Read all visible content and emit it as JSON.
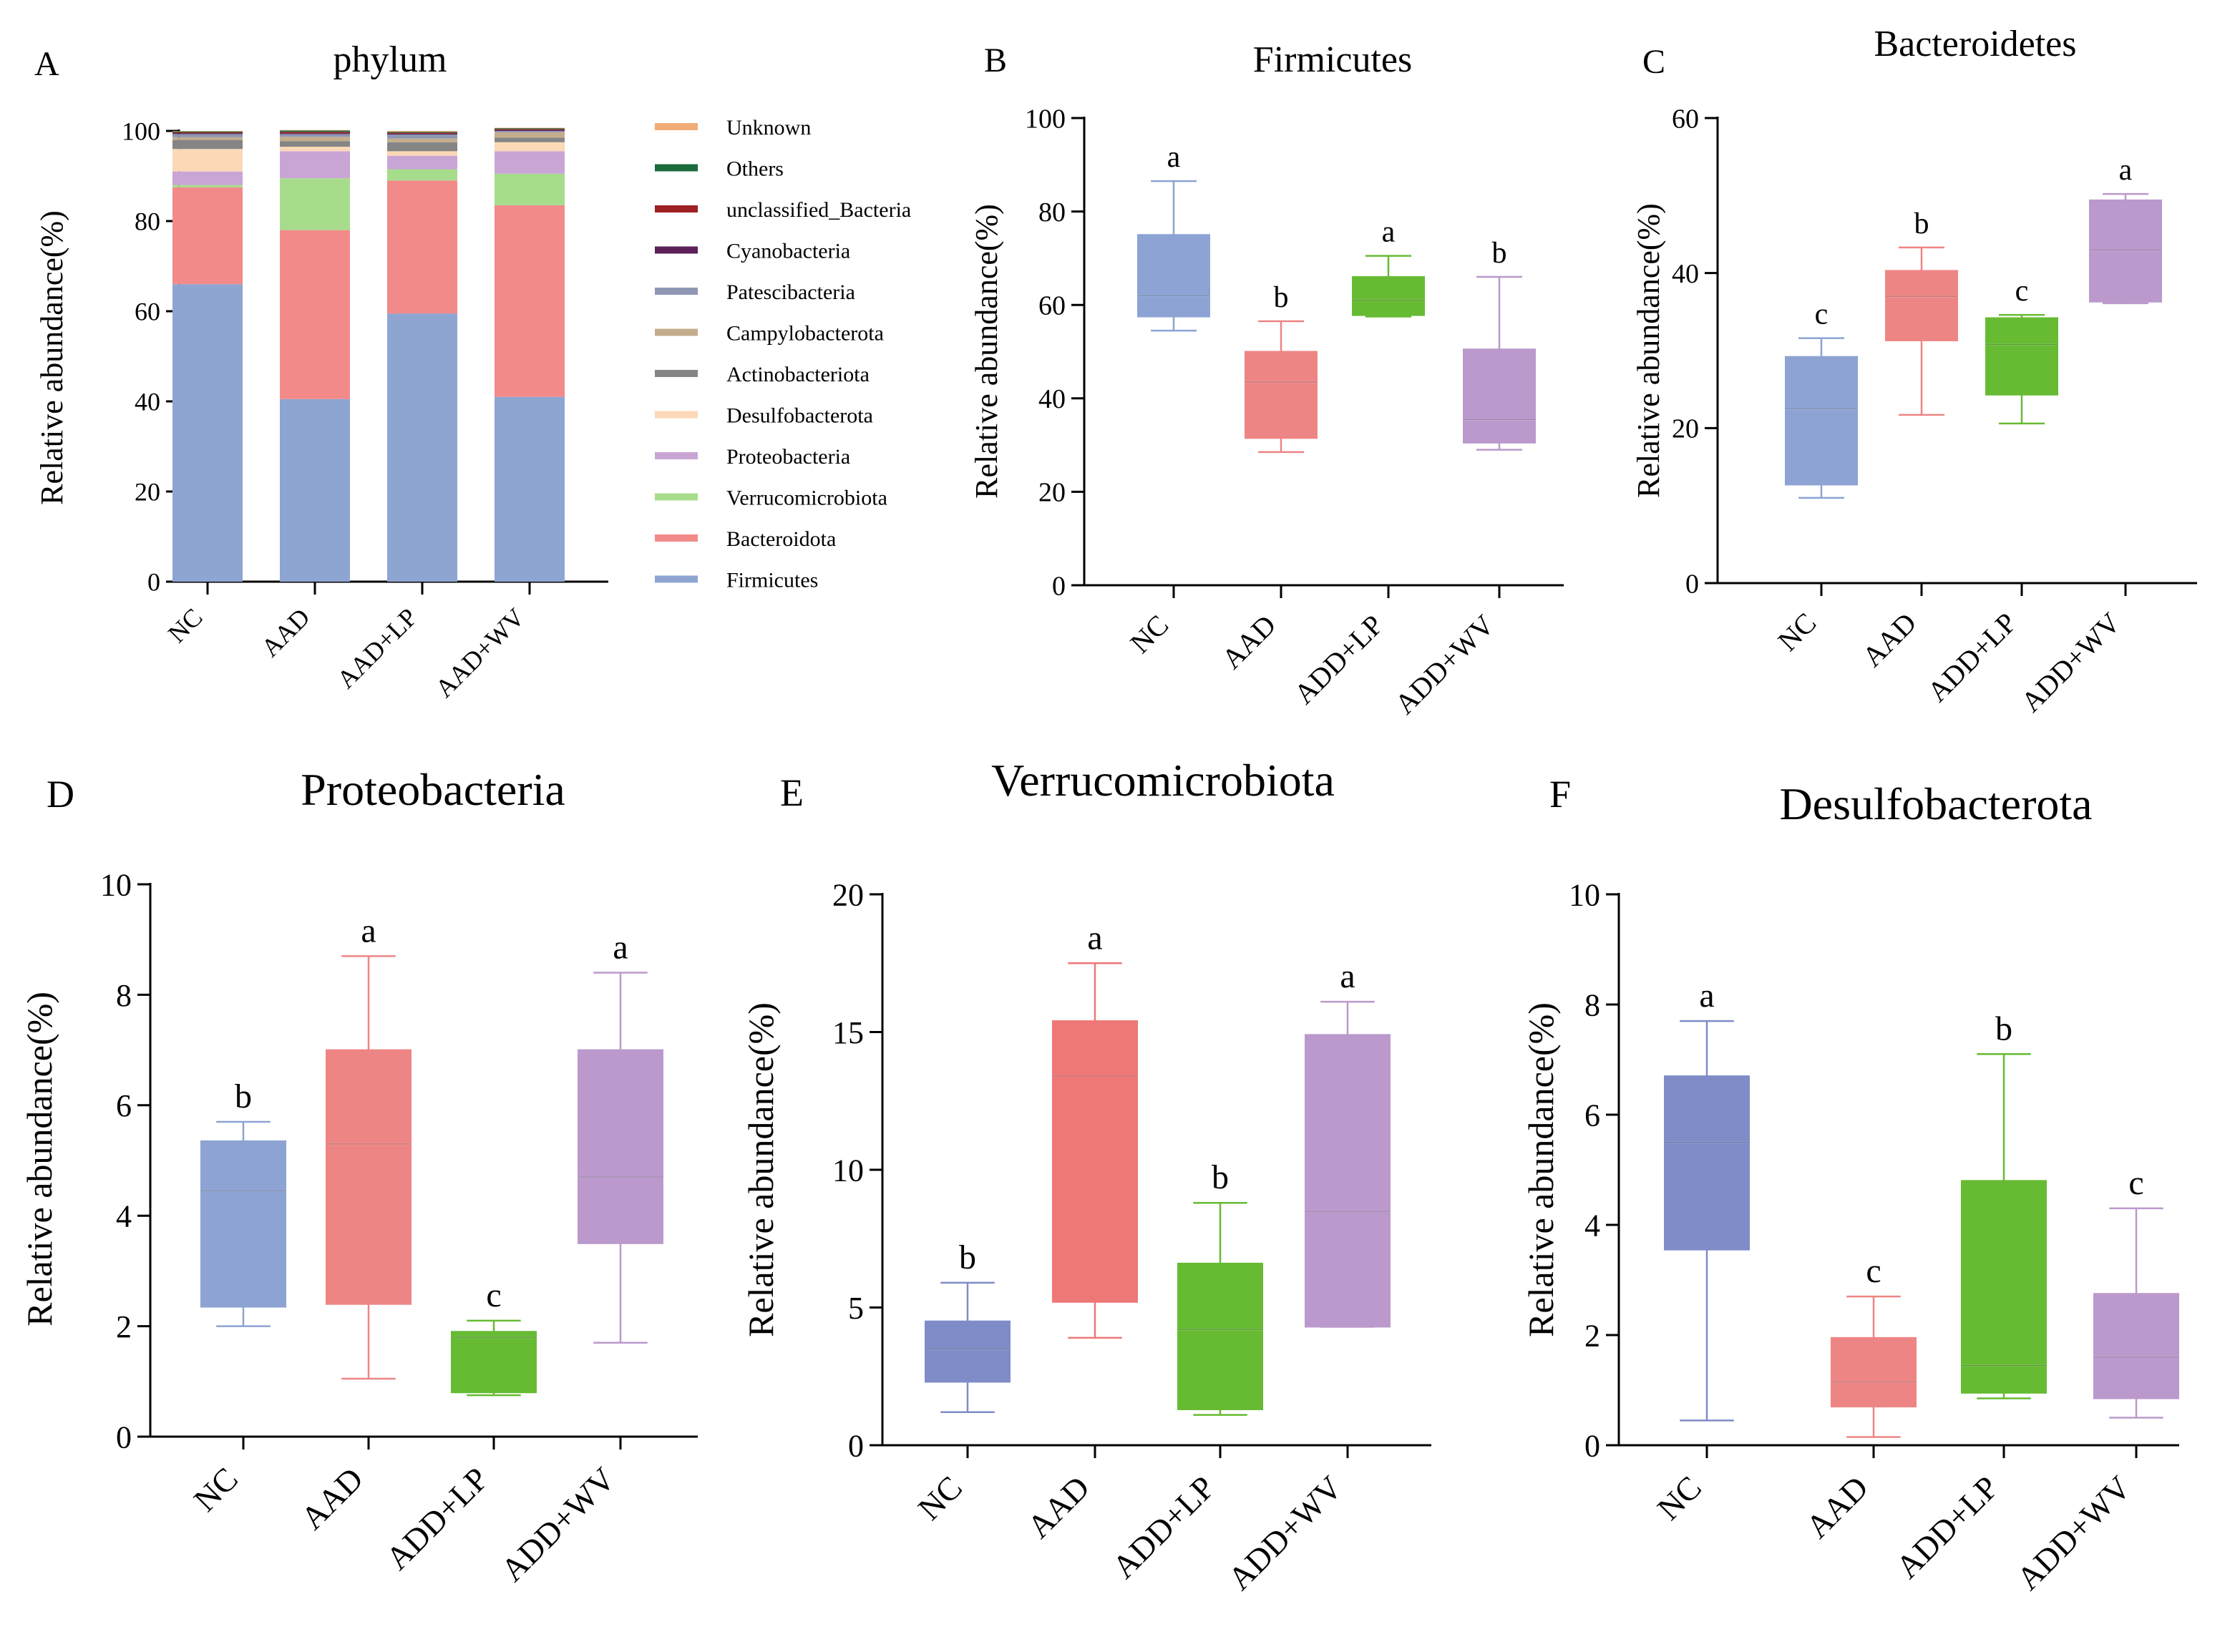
{
  "figure": {
    "colors": {
      "NC": "#8ca3d3",
      "AAD": "#ee8585",
      "LP": "#66bb33",
      "WV": "#bb99cc",
      "NC_dark": "#7f8cc8",
      "AAD_dark": "#ee7777",
      "LP_dark": "#66bb33",
      "WV_dark": "#bb99cc"
    }
  },
  "chart_data": [
    {
      "id": "A",
      "panel_letter": "A",
      "type": "bar",
      "stacked": true,
      "title": "phylum",
      "ylabel": "Relative abundance(%)",
      "ylim": [
        0,
        100
      ],
      "yticks": [
        0,
        20,
        40,
        60,
        80,
        100
      ],
      "categories": [
        "NC",
        "AAD",
        "AAD+LP",
        "AAD+WV"
      ],
      "legend_position": "right",
      "series": [
        {
          "name": "Firmicutes",
          "color": "#8ea5d2",
          "values": [
            66,
            40.5,
            59.5,
            41
          ]
        },
        {
          "name": "Bacteroidota",
          "color": "#f28a8a",
          "values": [
            21.5,
            37.5,
            29.5,
            42.5
          ]
        },
        {
          "name": "Verrucomicrobiota",
          "color": "#a7dc8c",
          "values": [
            0.5,
            11.5,
            2.5,
            7
          ]
        },
        {
          "name": "Proteobacteria",
          "color": "#c9a5d6",
          "values": [
            3,
            6,
            3,
            5
          ]
        },
        {
          "name": "Desulfobacterota",
          "color": "#fbd8b6",
          "values": [
            5,
            1,
            1,
            2
          ]
        },
        {
          "name": "Actinobacteriota",
          "color": "#858585",
          "values": [
            2,
            1.2,
            2,
            1
          ]
        },
        {
          "name": "Campylobacterota",
          "color": "#c4ad8c",
          "values": [
            0.6,
            1,
            0.8,
            1.2
          ]
        },
        {
          "name": "Patescibacteria",
          "color": "#8e96b4",
          "values": [
            0.7,
            0.6,
            0.9,
            0.3
          ]
        },
        {
          "name": "Cyanobacteria",
          "color": "#5b2158",
          "values": [
            0.2,
            0.2,
            0.2,
            0.2
          ]
        },
        {
          "name": "unclassified_Bacteria",
          "color": "#9e2024",
          "values": [
            0.2,
            0.3,
            0.2,
            0.2
          ]
        },
        {
          "name": "Others",
          "color": "#1b6b3a",
          "values": [
            0.2,
            0.3,
            0.2,
            0.2
          ]
        },
        {
          "name": "Unknown",
          "color": "#f0ad78",
          "values": [
            0.1,
            0.1,
            0.2,
            0.1
          ]
        }
      ],
      "legend_order": [
        "Unknown",
        "Others",
        "unclassified_Bacteria",
        "Cyanobacteria",
        "Patescibacteria",
        "Campylobacterota",
        "Actinobacteriota",
        "Desulfobacterota",
        "Proteobacteria",
        "Verrucomicrobiota",
        "Bacteroidota",
        "Firmicutes"
      ]
    },
    {
      "id": "B",
      "panel_letter": "B",
      "type": "box",
      "title": "Firmicutes",
      "ylabel": "Relative abundance(%)",
      "ylim": [
        0,
        100
      ],
      "yticks": [
        0,
        20,
        40,
        60,
        80,
        100
      ],
      "categories": [
        "NC",
        "AAD",
        "ADD+LP",
        "ADD+WV"
      ],
      "boxes": [
        {
          "min": 54.5,
          "q1": 57.5,
          "median": 62,
          "q3": 75,
          "max": 86.5,
          "letter": "a",
          "color_key": "NC"
        },
        {
          "min": 28.5,
          "q1": 31.5,
          "median": 43.5,
          "q3": 50,
          "max": 56.5,
          "letter": "b",
          "color_key": "AAD"
        },
        {
          "min": 57.5,
          "q1": 57.8,
          "median": 61,
          "q3": 66,
          "max": 70.5,
          "letter": "a",
          "color_key": "LP"
        },
        {
          "min": 29,
          "q1": 30.5,
          "median": 35.5,
          "q3": 50.5,
          "max": 66,
          "letter": "b",
          "color_key": "WV"
        }
      ]
    },
    {
      "id": "C",
      "panel_letter": "C",
      "type": "box",
      "title": "Bacteroidetes",
      "ylabel": "Relative abundance(%)",
      "ylim": [
        0,
        60
      ],
      "yticks": [
        0,
        20,
        40,
        60
      ],
      "categories": [
        "NC",
        "AAD",
        "ADD+LP",
        "ADD+WV"
      ],
      "boxes": [
        {
          "min": 11,
          "q1": 12.7,
          "median": 22.5,
          "q3": 29.2,
          "max": 31.6,
          "letter": "c",
          "color_key": "NC"
        },
        {
          "min": 21.7,
          "q1": 31.3,
          "median": 37,
          "q3": 40.3,
          "max": 43.3,
          "letter": "b",
          "color_key": "AAD"
        },
        {
          "min": 20.6,
          "q1": 24.3,
          "median": 30.8,
          "q3": 34.2,
          "max": 34.6,
          "letter": "c",
          "color_key": "LP"
        },
        {
          "min": 36.1,
          "q1": 36.3,
          "median": 43,
          "q3": 49.4,
          "max": 50.2,
          "letter": "a",
          "color_key": "WV"
        }
      ]
    },
    {
      "id": "D",
      "panel_letter": "D",
      "type": "box",
      "title": "Proteobacteria",
      "ylabel": "Relative abundance(%)",
      "ylim": [
        0,
        10
      ],
      "yticks": [
        0,
        2,
        4,
        6,
        8,
        10
      ],
      "categories": [
        "NC",
        "AAD",
        "ADD+LP",
        "ADD+WV"
      ],
      "boxes": [
        {
          "min": 2.0,
          "q1": 2.35,
          "median": 4.45,
          "q3": 5.35,
          "max": 5.7,
          "letter": "b",
          "color_key": "NC"
        },
        {
          "min": 1.05,
          "q1": 2.4,
          "median": 5.3,
          "q3": 7.0,
          "max": 8.7,
          "letter": "a",
          "color_key": "AAD"
        },
        {
          "min": 0.75,
          "q1": 0.8,
          "median": 1.8,
          "q3": 1.9,
          "max": 2.1,
          "letter": "c",
          "color_key": "LP"
        },
        {
          "min": 1.7,
          "q1": 3.5,
          "median": 4.7,
          "q3": 7.0,
          "max": 8.4,
          "letter": "a",
          "color_key": "WV"
        }
      ]
    },
    {
      "id": "E",
      "panel_letter": "E",
      "type": "box",
      "title": "Verrucomicrobiota",
      "ylabel": "Relative abundance(%)",
      "ylim": [
        0,
        20
      ],
      "yticks": [
        0,
        5,
        10,
        15,
        20
      ],
      "categories": [
        "NC",
        "AAD",
        "ADD+LP",
        "ADD+WV"
      ],
      "boxes": [
        {
          "min": 1.2,
          "q1": 2.3,
          "median": 3.5,
          "q3": 4.5,
          "max": 5.9,
          "letter": "b",
          "color_key": "NC_dark"
        },
        {
          "min": 3.9,
          "q1": 5.2,
          "median": 13.4,
          "q3": 15.4,
          "max": 17.5,
          "letter": "a",
          "color_key": "AAD_dark"
        },
        {
          "min": 1.1,
          "q1": 1.3,
          "median": 4.2,
          "q3": 6.6,
          "max": 8.8,
          "letter": "b",
          "color_key": "LP_dark"
        },
        {
          "min": 4.3,
          "q1": 4.3,
          "median": 8.5,
          "q3": 14.9,
          "max": 16.1,
          "letter": "a",
          "color_key": "WV_dark"
        }
      ]
    },
    {
      "id": "F",
      "panel_letter": "F",
      "type": "box",
      "title": "Desulfobacterota",
      "ylabel": "Relative abundance(%)",
      "ylim": [
        0,
        10
      ],
      "yticks": [
        0,
        2,
        4,
        6,
        8,
        10
      ],
      "categories": [
        "NC",
        "AAD",
        "ADD+LP",
        "ADD+WV"
      ],
      "boxes": [
        {
          "min": 0.45,
          "q1": 3.55,
          "median": 5.5,
          "q3": 6.7,
          "max": 7.7,
          "letter": "a",
          "color_key": "NC_dark"
        },
        {
          "min": 0.15,
          "q1": 0.7,
          "median": 1.15,
          "q3": 1.95,
          "max": 2.7,
          "letter": "c",
          "color_key": "AAD"
        },
        {
          "min": 0.85,
          "q1": 0.95,
          "median": 1.45,
          "q3": 4.8,
          "max": 7.1,
          "letter": "b",
          "color_key": "LP_dark"
        },
        {
          "min": 0.5,
          "q1": 0.85,
          "median": 1.6,
          "q3": 2.75,
          "max": 4.3,
          "letter": "c",
          "color_key": "WV"
        }
      ]
    }
  ]
}
